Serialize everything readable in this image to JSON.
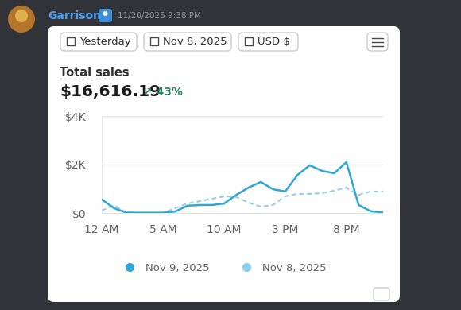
{
  "header": {
    "user": "Garrison",
    "timestamp": "11/20/2025 9:38 PM"
  },
  "controls": [
    "Yesterday",
    "Nov 8, 2025",
    "USD $"
  ],
  "summary": {
    "label": "Total sales",
    "value": "$16,616.19",
    "change": "↗ 43%"
  },
  "chart_data": {
    "type": "line",
    "x": [
      0,
      1,
      2,
      3,
      4,
      5,
      6,
      7,
      8,
      9,
      10,
      11,
      12,
      13,
      14,
      15,
      16,
      17,
      18,
      19,
      20,
      21,
      22,
      23
    ],
    "series": [
      {
        "name": "Nov 9, 2025",
        "color": "#2fa6d8",
        "line_style": "solid",
        "values": [
          560,
          200,
          20,
          10,
          10,
          10,
          60,
          300,
          330,
          330,
          390,
          750,
          1050,
          1280,
          980,
          890,
          1570,
          1970,
          1740,
          1640,
          2100,
          330,
          70,
          20
        ]
      },
      {
        "name": "Nov 8, 2025",
        "color": "#8ccdec",
        "line_style": "dotted",
        "values": [
          100,
          330,
          0,
          0,
          10,
          0,
          200,
          390,
          490,
          590,
          690,
          660,
          430,
          260,
          330,
          690,
          790,
          790,
          820,
          920,
          1050,
          750,
          890,
          890
        ]
      }
    ],
    "xlim": [
      0,
      23
    ],
    "xticks": [
      {
        "value": 0,
        "label": "12 AM"
      },
      {
        "value": 5,
        "label": "5 AM"
      },
      {
        "value": 10,
        "label": "10 AM"
      },
      {
        "value": 15,
        "label": "3 PM"
      },
      {
        "value": 20,
        "label": "8 PM"
      }
    ],
    "ylim": [
      0,
      4000
    ],
    "yticks": [
      {
        "value": 0,
        "label": "$0"
      },
      {
        "value": 2000,
        "label": "$2K"
      },
      {
        "value": 4000,
        "label": "$4K"
      }
    ],
    "grid": true,
    "legend": "bottom"
  }
}
